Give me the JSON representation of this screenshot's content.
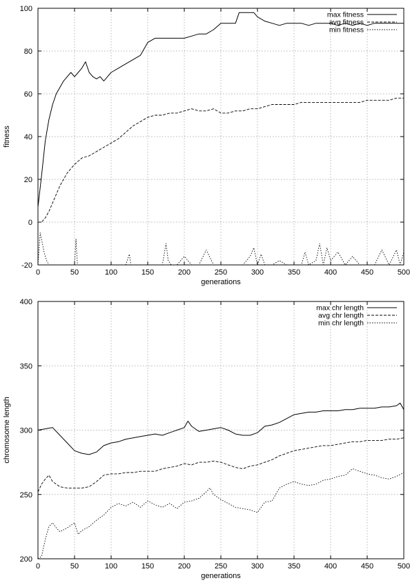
{
  "chart_data": [
    {
      "type": "line",
      "xlabel": "generations",
      "ylabel": "fitness",
      "xlim": [
        0,
        500
      ],
      "ylim": [
        -20,
        100
      ],
      "xticks": [
        "0",
        "50",
        "100",
        "150",
        "200",
        "250",
        "300",
        "350",
        "400",
        "450",
        "500"
      ],
      "yticks": [
        "-20",
        "0",
        "20",
        "40",
        "60",
        "80",
        "100"
      ],
      "grid": true,
      "legend_position": "top-right",
      "series": [
        {
          "name": "max fitness",
          "style": "solid",
          "x": [
            0,
            5,
            10,
            15,
            20,
            25,
            30,
            35,
            40,
            45,
            50,
            55,
            60,
            65,
            70,
            75,
            80,
            85,
            90,
            95,
            100,
            110,
            120,
            130,
            140,
            150,
            160,
            170,
            180,
            190,
            200,
            210,
            220,
            230,
            240,
            250,
            260,
            270,
            275,
            290,
            295,
            300,
            310,
            320,
            330,
            340,
            350,
            360,
            370,
            380,
            390,
            400,
            410,
            420,
            430,
            440,
            450,
            460,
            470,
            480,
            490,
            500
          ],
          "y": [
            7,
            22,
            38,
            48,
            55,
            60,
            63,
            66,
            68,
            70,
            68,
            70,
            72,
            75,
            70,
            68,
            67,
            68,
            66,
            68,
            70,
            72,
            74,
            76,
            78,
            84,
            86,
            86,
            86,
            86,
            86,
            87,
            88,
            88,
            90,
            93,
            93,
            93,
            98,
            98,
            98,
            96,
            94,
            93,
            92,
            93,
            93,
            93,
            92,
            93,
            93,
            93,
            92,
            93,
            92,
            93,
            92,
            93,
            93,
            93,
            93,
            93
          ]
        },
        {
          "name": "avg fitness",
          "style": "dashed",
          "x": [
            0,
            5,
            10,
            15,
            20,
            25,
            30,
            35,
            40,
            50,
            60,
            70,
            80,
            90,
            100,
            110,
            120,
            130,
            140,
            150,
            160,
            170,
            180,
            190,
            200,
            210,
            220,
            230,
            240,
            250,
            260,
            270,
            280,
            290,
            300,
            310,
            320,
            330,
            340,
            350,
            360,
            370,
            380,
            390,
            400,
            410,
            420,
            430,
            440,
            450,
            460,
            470,
            480,
            490,
            500
          ],
          "y": [
            0,
            0,
            2,
            5,
            9,
            13,
            17,
            20,
            23,
            27,
            30,
            31,
            33,
            35,
            37,
            39,
            42,
            45,
            47,
            49,
            50,
            50,
            51,
            51,
            52,
            53,
            52,
            52,
            53,
            51,
            51,
            52,
            52,
            53,
            53,
            54,
            55,
            55,
            55,
            55,
            56,
            56,
            56,
            56,
            56,
            56,
            56,
            56,
            56,
            57,
            57,
            57,
            57,
            58,
            58
          ]
        },
        {
          "name": "min fitness",
          "style": "dotted",
          "x": [
            0,
            3,
            6,
            9,
            12,
            15,
            18,
            22,
            26,
            30,
            40,
            50,
            52,
            54,
            60,
            70,
            80,
            90,
            100,
            110,
            120,
            125,
            127,
            130,
            140,
            150,
            160,
            170,
            175,
            178,
            182,
            190,
            200,
            210,
            220,
            230,
            240,
            250,
            260,
            270,
            280,
            290,
            295,
            300,
            305,
            310,
            320,
            330,
            340,
            350,
            360,
            365,
            370,
            380,
            385,
            390,
            395,
            400,
            410,
            420,
            430,
            440,
            450,
            460,
            470,
            480,
            490,
            495,
            500
          ],
          "y": [
            -20,
            -5,
            -10,
            -15,
            -18,
            -20,
            -20,
            -20,
            -20,
            -20,
            -20,
            -20,
            -8,
            -20,
            -20,
            -20,
            -20,
            -20,
            -20,
            -20,
            -20,
            -15,
            -20,
            -20,
            -20,
            -20,
            -20,
            -20,
            -10,
            -18,
            -20,
            -20,
            -16,
            -20,
            -20,
            -13,
            -20,
            -20,
            -20,
            -20,
            -20,
            -16,
            -12,
            -20,
            -15,
            -20,
            -20,
            -18,
            -20,
            -20,
            -20,
            -14,
            -20,
            -18,
            -10,
            -20,
            -12,
            -18,
            -14,
            -20,
            -16,
            -20,
            -20,
            -20,
            -13,
            -20,
            -13,
            -20,
            -14
          ]
        }
      ]
    },
    {
      "type": "line",
      "xlabel": "generations",
      "ylabel": "chromosome length",
      "xlim": [
        0,
        500
      ],
      "ylim": [
        200,
        400
      ],
      "xticks": [
        "0",
        "50",
        "100",
        "150",
        "200",
        "250",
        "300",
        "350",
        "400",
        "450",
        "500"
      ],
      "yticks": [
        "200",
        "250",
        "300",
        "350",
        "400"
      ],
      "grid": true,
      "legend_position": "top-right",
      "series": [
        {
          "name": "max chr length",
          "style": "solid",
          "x": [
            0,
            10,
            20,
            30,
            40,
            50,
            60,
            70,
            80,
            90,
            100,
            110,
            120,
            130,
            140,
            150,
            160,
            170,
            180,
            190,
            200,
            205,
            210,
            220,
            230,
            240,
            250,
            260,
            270,
            280,
            290,
            300,
            310,
            320,
            330,
            340,
            350,
            360,
            370,
            380,
            390,
            400,
            410,
            420,
            430,
            440,
            450,
            460,
            470,
            480,
            490,
            495,
            500
          ],
          "y": [
            300,
            301,
            302,
            296,
            290,
            284,
            282,
            281,
            283,
            288,
            290,
            291,
            293,
            294,
            295,
            296,
            297,
            296,
            298,
            300,
            302,
            307,
            303,
            299,
            300,
            301,
            302,
            300,
            297,
            296,
            296,
            298,
            303,
            304,
            306,
            309,
            312,
            313,
            314,
            314,
            315,
            315,
            315,
            316,
            316,
            317,
            317,
            317,
            318,
            318,
            319,
            321,
            316
          ]
        },
        {
          "name": "avg chr length",
          "style": "dashed",
          "x": [
            0,
            5,
            10,
            15,
            20,
            30,
            40,
            50,
            60,
            70,
            80,
            90,
            100,
            110,
            120,
            130,
            140,
            150,
            160,
            170,
            180,
            190,
            200,
            210,
            220,
            230,
            240,
            250,
            260,
            270,
            280,
            290,
            300,
            310,
            320,
            330,
            340,
            350,
            360,
            370,
            380,
            390,
            400,
            410,
            420,
            430,
            440,
            450,
            460,
            470,
            480,
            490,
            500
          ],
          "y": [
            252,
            258,
            262,
            265,
            260,
            256,
            255,
            255,
            255,
            256,
            260,
            265,
            266,
            266,
            267,
            267,
            268,
            268,
            268,
            270,
            271,
            272,
            274,
            273,
            275,
            275,
            276,
            275,
            273,
            271,
            270,
            272,
            273,
            275,
            277,
            280,
            282,
            284,
            285,
            286,
            287,
            288,
            288,
            289,
            290,
            291,
            291,
            292,
            292,
            292,
            293,
            293,
            294
          ]
        },
        {
          "name": "min chr length",
          "style": "dotted",
          "x": [
            0,
            5,
            10,
            15,
            20,
            25,
            30,
            40,
            50,
            55,
            60,
            70,
            80,
            90,
            100,
            110,
            120,
            130,
            140,
            150,
            160,
            170,
            180,
            190,
            200,
            210,
            220,
            230,
            235,
            240,
            250,
            260,
            270,
            280,
            290,
            300,
            310,
            320,
            330,
            340,
            350,
            360,
            370,
            380,
            390,
            400,
            410,
            420,
            430,
            440,
            450,
            460,
            470,
            480,
            490,
            500
          ],
          "y": [
            200,
            202,
            215,
            225,
            228,
            224,
            221,
            224,
            228,
            219,
            222,
            225,
            230,
            234,
            240,
            243,
            241,
            244,
            240,
            245,
            242,
            240,
            243,
            239,
            244,
            245,
            247,
            252,
            255,
            250,
            246,
            243,
            240,
            239,
            238,
            236,
            244,
            245,
            255,
            258,
            260,
            258,
            257,
            258,
            261,
            262,
            264,
            265,
            270,
            268,
            266,
            265,
            263,
            262,
            264,
            267
          ]
        }
      ]
    }
  ]
}
